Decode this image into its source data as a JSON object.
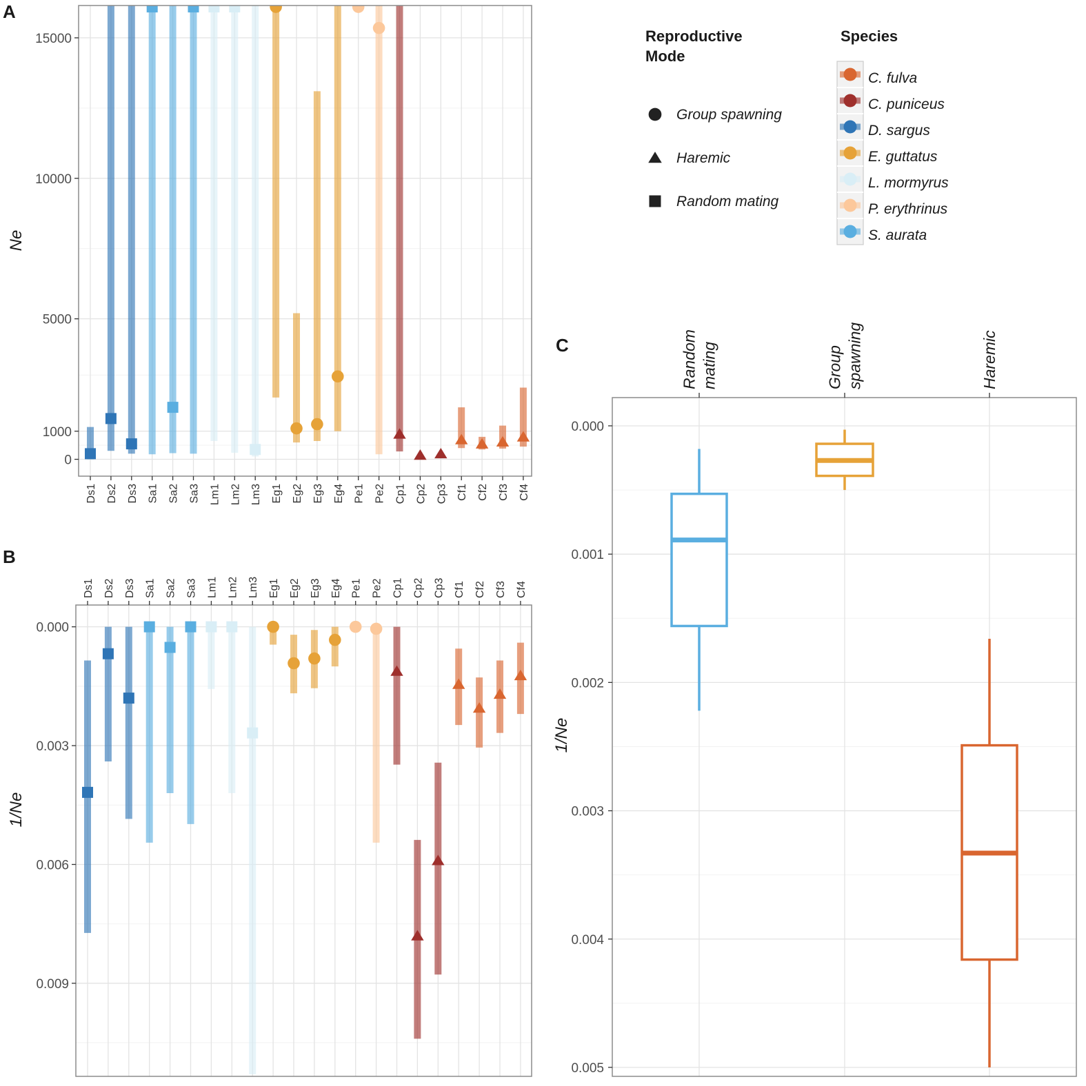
{
  "chart_data": [
    {
      "panel": "A",
      "type": "errorbar",
      "ylabel": "Ne",
      "ylim": [
        -600,
        16150
      ],
      "yticks": [
        0,
        1000,
        5000,
        10000,
        15000
      ],
      "colors": {
        "C. fulva": "#d96630",
        "C. puniceus": "#9e2f2c",
        "D. sargus": "#2f75b6",
        "E. guttatus": "#e6a238",
        "L. mormyrus": "#d9eef6",
        "P. erythrinus": "#fcc89b",
        "S. aurata": "#5aaee0"
      },
      "points": [
        {
          "label": "Ds1",
          "species": "D. sargus",
          "mode": "Random mating",
          "value": 200,
          "low": 0,
          "high": 1150
        },
        {
          "label": "Ds2",
          "species": "D. sargus",
          "mode": "Random mating",
          "value": 1450,
          "low": 300,
          "high": 16150
        },
        {
          "label": "Ds3",
          "species": "D. sargus",
          "mode": "Random mating",
          "value": 550,
          "low": 200,
          "high": 16150
        },
        {
          "label": "Sa1",
          "species": "S. aurata",
          "mode": "Random mating",
          "value": 16100,
          "low": 180,
          "high": 16150
        },
        {
          "label": "Sa2",
          "species": "S. aurata",
          "mode": "Random mating",
          "value": 1850,
          "low": 220,
          "high": 16150
        },
        {
          "label": "Sa3",
          "species": "S. aurata",
          "mode": "Random mating",
          "value": 16100,
          "low": 200,
          "high": 16150
        },
        {
          "label": "Lm1",
          "species": "L. mormyrus",
          "mode": "Random mating",
          "value": 16100,
          "low": 650,
          "high": 16150
        },
        {
          "label": "Lm2",
          "species": "L. mormyrus",
          "mode": "Random mating",
          "value": 16100,
          "low": 230,
          "high": 16150
        },
        {
          "label": "Lm3",
          "species": "L. mormyrus",
          "mode": "Random mating",
          "value": 350,
          "low": 100,
          "high": 16150
        },
        {
          "label": "Eg1",
          "species": "E. guttatus",
          "mode": "Group spawning",
          "value": 16100,
          "low": 2200,
          "high": 16150
        },
        {
          "label": "Eg2",
          "species": "E. guttatus",
          "mode": "Group spawning",
          "value": 1100,
          "low": 600,
          "high": 5200
        },
        {
          "label": "Eg3",
          "species": "E. guttatus",
          "mode": "Group spawning",
          "value": 1250,
          "low": 650,
          "high": 13100
        },
        {
          "label": "Eg4",
          "species": "E. guttatus",
          "mode": "Group spawning",
          "value": 2950,
          "low": 1000,
          "high": 16150
        },
        {
          "label": "Pe1",
          "species": "P. erythrinus",
          "mode": "Group spawning",
          "value": 16100,
          "low": 16100,
          "high": 16150
        },
        {
          "label": "Pe2",
          "species": "P. erythrinus",
          "mode": "Group spawning",
          "value": 15350,
          "low": 180,
          "high": 16150
        },
        {
          "label": "Cp1",
          "species": "C. puniceus",
          "mode": "Haremic",
          "value": 900,
          "low": 280,
          "high": 16150
        },
        {
          "label": "Cp2",
          "species": "C. puniceus",
          "mode": "Haremic",
          "value": 150,
          "low": 150,
          "high": 150
        },
        {
          "label": "Cp3",
          "species": "C. puniceus",
          "mode": "Haremic",
          "value": 200,
          "low": 200,
          "high": 200
        },
        {
          "label": "Cf1",
          "species": "C. fulva",
          "mode": "Haremic",
          "value": 700,
          "low": 400,
          "high": 1850
        },
        {
          "label": "Cf2",
          "species": "C. fulva",
          "mode": "Haremic",
          "value": 550,
          "low": 350,
          "high": 800
        },
        {
          "label": "Cf3",
          "species": "C. fulva",
          "mode": "Haremic",
          "value": 620,
          "low": 380,
          "high": 1200
        },
        {
          "label": "Cf4",
          "species": "C. fulva",
          "mode": "Haremic",
          "value": 800,
          "low": 450,
          "high": 2550
        }
      ]
    },
    {
      "panel": "B",
      "type": "errorbar",
      "ylabel": "1/Ne",
      "ylim": [
        0.01135,
        -0.00055
      ],
      "yticks": [
        "0.000",
        "0.003",
        "0.006",
        "0.009"
      ],
      "points": [
        {
          "label": "Ds1",
          "value": 0.00418,
          "low": 0.00085,
          "high": 0.00773
        },
        {
          "label": "Ds2",
          "value": 0.00068,
          "low": 0.0,
          "high": 0.0034
        },
        {
          "label": "Ds3",
          "value": 0.0018,
          "low": 0.0,
          "high": 0.00485
        },
        {
          "label": "Sa1",
          "value": 0.0,
          "low": 0.0,
          "high": 0.00545
        },
        {
          "label": "Sa2",
          "value": 0.00052,
          "low": 0.0,
          "high": 0.0042
        },
        {
          "label": "Sa3",
          "value": 0.0,
          "low": 0.0,
          "high": 0.00498
        },
        {
          "label": "Lm1",
          "value": 0.0,
          "low": 0.0,
          "high": 0.00157
        },
        {
          "label": "Lm2",
          "value": 0.0,
          "low": 0.0,
          "high": 0.0042
        },
        {
          "label": "Lm3",
          "value": 0.00268,
          "low": 0.0,
          "high": 0.0113
        },
        {
          "label": "Eg1",
          "value": 0.0,
          "low": 0.0,
          "high": 0.00045
        },
        {
          "label": "Eg2",
          "value": 0.00092,
          "low": 0.0002,
          "high": 0.00168
        },
        {
          "label": "Eg3",
          "value": 0.0008,
          "low": 8e-05,
          "high": 0.00155
        },
        {
          "label": "Eg4",
          "value": 0.00033,
          "low": 0.0,
          "high": 0.001
        },
        {
          "label": "Pe1",
          "value": 0.0,
          "low": 0.0,
          "high": 0.0
        },
        {
          "label": "Pe2",
          "value": 5e-05,
          "low": 0.0,
          "high": 0.00545
        },
        {
          "label": "Cp1",
          "value": 0.00112,
          "low": 0.0,
          "high": 0.00348
        },
        {
          "label": "Cp2",
          "value": 0.0078,
          "low": 0.00538,
          "high": 0.0104
        },
        {
          "label": "Cp3",
          "value": 0.0059,
          "low": 0.00343,
          "high": 0.00878
        },
        {
          "label": "Cf1",
          "value": 0.00145,
          "low": 0.00055,
          "high": 0.00248
        },
        {
          "label": "Cf2",
          "value": 0.00205,
          "low": 0.00128,
          "high": 0.00305
        },
        {
          "label": "Cf3",
          "value": 0.0017,
          "low": 0.00085,
          "high": 0.00268
        },
        {
          "label": "Cf4",
          "value": 0.00123,
          "low": 0.0004,
          "high": 0.0022
        }
      ]
    },
    {
      "panel": "C",
      "type": "boxplot",
      "ylabel": "1/Ne",
      "ylim": [
        0.00507,
        -0.00022
      ],
      "yticks": [
        "0.000",
        "0.001",
        "0.002",
        "0.003",
        "0.004",
        "0.005"
      ],
      "boxes": [
        {
          "name": "Random\nmating",
          "name_lines": [
            "Random",
            "mating"
          ],
          "color": "#5aaee0",
          "whisker_low": 0.00018,
          "q1": 0.00053,
          "median": 0.00089,
          "q3": 0.00156,
          "whisker_high": 0.00222
        },
        {
          "name": "Group\nspawning",
          "name_lines": [
            "Group",
            "spawning"
          ],
          "color": "#e6a238",
          "whisker_low": 3e-05,
          "q1": 0.00014,
          "median": 0.00027,
          "q3": 0.00039,
          "whisker_high": 0.0005
        },
        {
          "name": "Haremic",
          "name_lines": [
            "Haremic"
          ],
          "color": "#d96630",
          "whisker_low": 0.00166,
          "q1": 0.00249,
          "median": 0.00333,
          "q3": 0.00416,
          "whisker_high": 0.005
        }
      ]
    }
  ],
  "labels": {
    "panel_a": "A",
    "panel_b": "B",
    "panel_c": "C"
  },
  "legend": {
    "mode_title_lines": [
      "Reproductive",
      "Mode"
    ],
    "modes": [
      {
        "label": "Group spawning",
        "shape": "circle"
      },
      {
        "label": "Haremic",
        "shape": "triangle"
      },
      {
        "label": "Random mating",
        "shape": "square"
      }
    ],
    "species_title": "Species",
    "species": [
      {
        "label": "C. fulva",
        "color": "#d96630"
      },
      {
        "label": "C. puniceus",
        "color": "#9e2f2c"
      },
      {
        "label": "D. sargus",
        "color": "#2f75b6"
      },
      {
        "label": "E. guttatus",
        "color": "#e6a238"
      },
      {
        "label": "L. mormyrus",
        "color": "#d9eef6"
      },
      {
        "label": "P. erythrinus",
        "color": "#fcc89b"
      },
      {
        "label": "S. aurata",
        "color": "#5aaee0"
      }
    ]
  }
}
